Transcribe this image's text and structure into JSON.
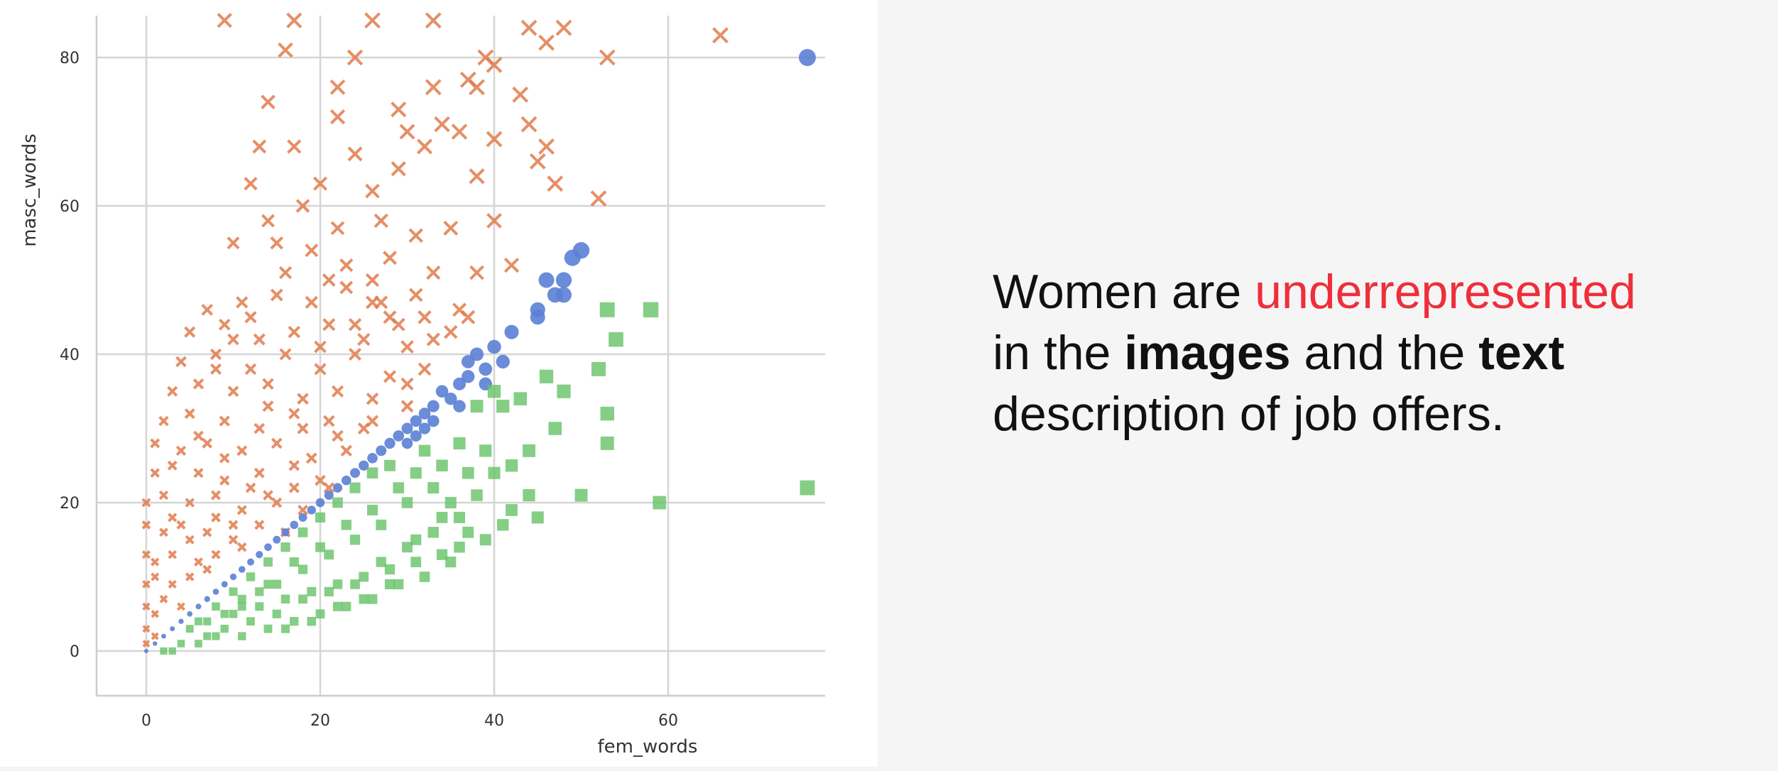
{
  "slide": {
    "headline": {
      "part1": "Women are ",
      "accent": "underrepresented",
      "part2": "in the ",
      "bold1": "images",
      "part3": " and the ",
      "bold2": "text",
      "part4": "description of job offers."
    },
    "colors": {
      "accent": "#ee2f3a",
      "text": "#111111"
    }
  },
  "chart_data": {
    "type": "scatter",
    "xlabel": "fem_words",
    "ylabel": "masc_words",
    "xlim": [
      -7,
      78
    ],
    "ylim": [
      -6,
      86
    ],
    "xticks": [
      0,
      20,
      40,
      60
    ],
    "yticks": [
      0,
      20,
      40,
      60,
      80
    ],
    "grid": true,
    "series": [
      {
        "marker": "x",
        "color": "#e07b4c",
        "points": [
          [
            9,
            85
          ],
          [
            17,
            85
          ],
          [
            26,
            85
          ],
          [
            33,
            85
          ],
          [
            44,
            84
          ],
          [
            48,
            84
          ],
          [
            16,
            81
          ],
          [
            24,
            80
          ],
          [
            40,
            79
          ],
          [
            53,
            80
          ],
          [
            66,
            83
          ],
          [
            46,
            82
          ],
          [
            14,
            74
          ],
          [
            37,
            77
          ],
          [
            43,
            75
          ],
          [
            39,
            80
          ],
          [
            22,
            76
          ],
          [
            29,
            73
          ],
          [
            33,
            76
          ],
          [
            38,
            76
          ],
          [
            22,
            72
          ],
          [
            30,
            70
          ],
          [
            34,
            71
          ],
          [
            36,
            70
          ],
          [
            44,
            71
          ],
          [
            13,
            68
          ],
          [
            17,
            68
          ],
          [
            24,
            67
          ],
          [
            32,
            68
          ],
          [
            40,
            69
          ],
          [
            46,
            68
          ],
          [
            12,
            63
          ],
          [
            20,
            63
          ],
          [
            26,
            62
          ],
          [
            29,
            65
          ],
          [
            38,
            64
          ],
          [
            45,
            66
          ],
          [
            47,
            63
          ],
          [
            52,
            61
          ],
          [
            10,
            55
          ],
          [
            14,
            58
          ],
          [
            18,
            60
          ],
          [
            22,
            57
          ],
          [
            27,
            58
          ],
          [
            31,
            56
          ],
          [
            35,
            57
          ],
          [
            40,
            58
          ],
          [
            15,
            55
          ],
          [
            19,
            54
          ],
          [
            23,
            52
          ],
          [
            28,
            53
          ],
          [
            33,
            51
          ],
          [
            38,
            51
          ],
          [
            42,
            52
          ],
          [
            7,
            46
          ],
          [
            11,
            47
          ],
          [
            15,
            48
          ],
          [
            19,
            47
          ],
          [
            23,
            49
          ],
          [
            27,
            47
          ],
          [
            31,
            48
          ],
          [
            36,
            46
          ],
          [
            5,
            43
          ],
          [
            9,
            44
          ],
          [
            13,
            42
          ],
          [
            17,
            43
          ],
          [
            21,
            44
          ],
          [
            25,
            42
          ],
          [
            29,
            44
          ],
          [
            33,
            42
          ],
          [
            37,
            45
          ],
          [
            4,
            39
          ],
          [
            8,
            40
          ],
          [
            12,
            38
          ],
          [
            16,
            40
          ],
          [
            20,
            38
          ],
          [
            24,
            40
          ],
          [
            28,
            37
          ],
          [
            32,
            38
          ],
          [
            3,
            35
          ],
          [
            6,
            36
          ],
          [
            10,
            35
          ],
          [
            14,
            36
          ],
          [
            18,
            34
          ],
          [
            22,
            35
          ],
          [
            26,
            34
          ],
          [
            30,
            33
          ],
          [
            2,
            31
          ],
          [
            5,
            32
          ],
          [
            9,
            31
          ],
          [
            13,
            30
          ],
          [
            17,
            32
          ],
          [
            21,
            31
          ],
          [
            25,
            30
          ],
          [
            1,
            28
          ],
          [
            4,
            27
          ],
          [
            7,
            28
          ],
          [
            11,
            27
          ],
          [
            15,
            28
          ],
          [
            19,
            26
          ],
          [
            23,
            27
          ],
          [
            1,
            24
          ],
          [
            3,
            25
          ],
          [
            6,
            24
          ],
          [
            9,
            23
          ],
          [
            13,
            24
          ],
          [
            17,
            25
          ],
          [
            21,
            22
          ],
          [
            0,
            20
          ],
          [
            2,
            21
          ],
          [
            5,
            20
          ],
          [
            8,
            21
          ],
          [
            11,
            19
          ],
          [
            15,
            20
          ],
          [
            18,
            19
          ],
          [
            0,
            17
          ],
          [
            2,
            16
          ],
          [
            4,
            17
          ],
          [
            7,
            16
          ],
          [
            10,
            15
          ],
          [
            13,
            17
          ],
          [
            16,
            16
          ],
          [
            0,
            13
          ],
          [
            1,
            12
          ],
          [
            3,
            13
          ],
          [
            6,
            12
          ],
          [
            8,
            13
          ],
          [
            11,
            14
          ],
          [
            0,
            9
          ],
          [
            1,
            10
          ],
          [
            3,
            9
          ],
          [
            5,
            10
          ],
          [
            7,
            11
          ],
          [
            0,
            6
          ],
          [
            1,
            5
          ],
          [
            2,
            7
          ],
          [
            4,
            6
          ],
          [
            0,
            3
          ],
          [
            1,
            2
          ],
          [
            0,
            1
          ],
          [
            26,
            47
          ],
          [
            28,
            45
          ],
          [
            24,
            44
          ],
          [
            20,
            41
          ],
          [
            30,
            41
          ],
          [
            32,
            45
          ],
          [
            35,
            43
          ],
          [
            12,
            45
          ],
          [
            16,
            51
          ],
          [
            21,
            50
          ],
          [
            26,
            50
          ],
          [
            8,
            38
          ],
          [
            10,
            42
          ],
          [
            14,
            33
          ],
          [
            18,
            30
          ],
          [
            22,
            29
          ],
          [
            26,
            31
          ],
          [
            30,
            36
          ],
          [
            6,
            29
          ],
          [
            9,
            26
          ],
          [
            12,
            22
          ],
          [
            14,
            21
          ],
          [
            17,
            22
          ],
          [
            20,
            23
          ],
          [
            3,
            18
          ],
          [
            5,
            15
          ],
          [
            8,
            18
          ],
          [
            10,
            17
          ]
        ]
      },
      {
        "marker": "circle",
        "color": "#5b7fd4",
        "points": [
          [
            76,
            80
          ],
          [
            50,
            54
          ],
          [
            49,
            53
          ],
          [
            46,
            50
          ],
          [
            48,
            50
          ],
          [
            47,
            48
          ],
          [
            48,
            48
          ],
          [
            45,
            46
          ],
          [
            45,
            45
          ],
          [
            42,
            43
          ],
          [
            40,
            41
          ],
          [
            41,
            39
          ],
          [
            38,
            40
          ],
          [
            39,
            38
          ],
          [
            37,
            39
          ],
          [
            37,
            37
          ],
          [
            39,
            36
          ],
          [
            36,
            36
          ],
          [
            34,
            35
          ],
          [
            35,
            34
          ],
          [
            33,
            33
          ],
          [
            36,
            33
          ],
          [
            32,
            32
          ],
          [
            33,
            31
          ],
          [
            31,
            31
          ],
          [
            30,
            30
          ],
          [
            32,
            30
          ],
          [
            29,
            29
          ],
          [
            31,
            29
          ],
          [
            28,
            28
          ],
          [
            30,
            28
          ],
          [
            27,
            27
          ],
          [
            26,
            26
          ],
          [
            25,
            25
          ],
          [
            24,
            24
          ],
          [
            23,
            23
          ],
          [
            22,
            22
          ],
          [
            21,
            21
          ],
          [
            20,
            20
          ],
          [
            19,
            19
          ],
          [
            18,
            18
          ],
          [
            17,
            17
          ],
          [
            16,
            16
          ],
          [
            15,
            15
          ],
          [
            14,
            14
          ],
          [
            13,
            13
          ],
          [
            12,
            12
          ],
          [
            11,
            11
          ],
          [
            10,
            10
          ],
          [
            9,
            9
          ],
          [
            8,
            8
          ],
          [
            7,
            7
          ],
          [
            6,
            6
          ],
          [
            5,
            5
          ],
          [
            4,
            4
          ],
          [
            3,
            3
          ],
          [
            2,
            2
          ],
          [
            1,
            1
          ],
          [
            0,
            0
          ]
        ]
      },
      {
        "marker": "square",
        "color": "#66c266",
        "points": [
          [
            53,
            46
          ],
          [
            58,
            46
          ],
          [
            54,
            42
          ],
          [
            52,
            38
          ],
          [
            48,
            35
          ],
          [
            46,
            37
          ],
          [
            43,
            34
          ],
          [
            41,
            33
          ],
          [
            53,
            32
          ],
          [
            53,
            28
          ],
          [
            40,
            35
          ],
          [
            38,
            33
          ],
          [
            59,
            20
          ],
          [
            76,
            22
          ],
          [
            50,
            21
          ],
          [
            44,
            21
          ],
          [
            42,
            19
          ],
          [
            45,
            18
          ],
          [
            41,
            17
          ],
          [
            39,
            15
          ],
          [
            36,
            14
          ],
          [
            34,
            13
          ],
          [
            31,
            12
          ],
          [
            28,
            11
          ],
          [
            25,
            10
          ],
          [
            22,
            9
          ],
          [
            19,
            8
          ],
          [
            16,
            7
          ],
          [
            13,
            6
          ],
          [
            10,
            5
          ],
          [
            7,
            4
          ],
          [
            5,
            3
          ],
          [
            4,
            1
          ],
          [
            2,
            0
          ],
          [
            3,
            0
          ],
          [
            6,
            1
          ],
          [
            8,
            2
          ],
          [
            11,
            2
          ],
          [
            14,
            3
          ],
          [
            17,
            4
          ],
          [
            20,
            5
          ],
          [
            23,
            6
          ],
          [
            26,
            7
          ],
          [
            29,
            9
          ],
          [
            32,
            10
          ],
          [
            35,
            12
          ],
          [
            37,
            16
          ],
          [
            35,
            20
          ],
          [
            33,
            22
          ],
          [
            31,
            24
          ],
          [
            28,
            25
          ],
          [
            26,
            24
          ],
          [
            24,
            22
          ],
          [
            22,
            20
          ],
          [
            20,
            18
          ],
          [
            18,
            16
          ],
          [
            16,
            14
          ],
          [
            14,
            12
          ],
          [
            12,
            10
          ],
          [
            10,
            8
          ],
          [
            8,
            6
          ],
          [
            6,
            4
          ],
          [
            9,
            3
          ],
          [
            12,
            4
          ],
          [
            15,
            5
          ],
          [
            18,
            7
          ],
          [
            21,
            8
          ],
          [
            24,
            9
          ],
          [
            27,
            12
          ],
          [
            30,
            14
          ],
          [
            33,
            16
          ],
          [
            36,
            18
          ],
          [
            38,
            21
          ],
          [
            34,
            25
          ],
          [
            30,
            20
          ],
          [
            27,
            17
          ],
          [
            24,
            15
          ],
          [
            21,
            13
          ],
          [
            18,
            11
          ],
          [
            15,
            9
          ],
          [
            13,
            8
          ],
          [
            11,
            6
          ],
          [
            9,
            5
          ],
          [
            7,
            2
          ],
          [
            16,
            3
          ],
          [
            19,
            4
          ],
          [
            22,
            6
          ],
          [
            25,
            7
          ],
          [
            28,
            9
          ],
          [
            31,
            15
          ],
          [
            34,
            18
          ],
          [
            37,
            24
          ],
          [
            39,
            27
          ],
          [
            40,
            24
          ],
          [
            42,
            25
          ],
          [
            44,
            27
          ],
          [
            47,
            30
          ],
          [
            36,
            28
          ],
          [
            32,
            27
          ],
          [
            29,
            22
          ],
          [
            26,
            19
          ],
          [
            23,
            17
          ],
          [
            20,
            14
          ],
          [
            17,
            12
          ],
          [
            14,
            9
          ],
          [
            11,
            7
          ]
        ]
      }
    ]
  }
}
